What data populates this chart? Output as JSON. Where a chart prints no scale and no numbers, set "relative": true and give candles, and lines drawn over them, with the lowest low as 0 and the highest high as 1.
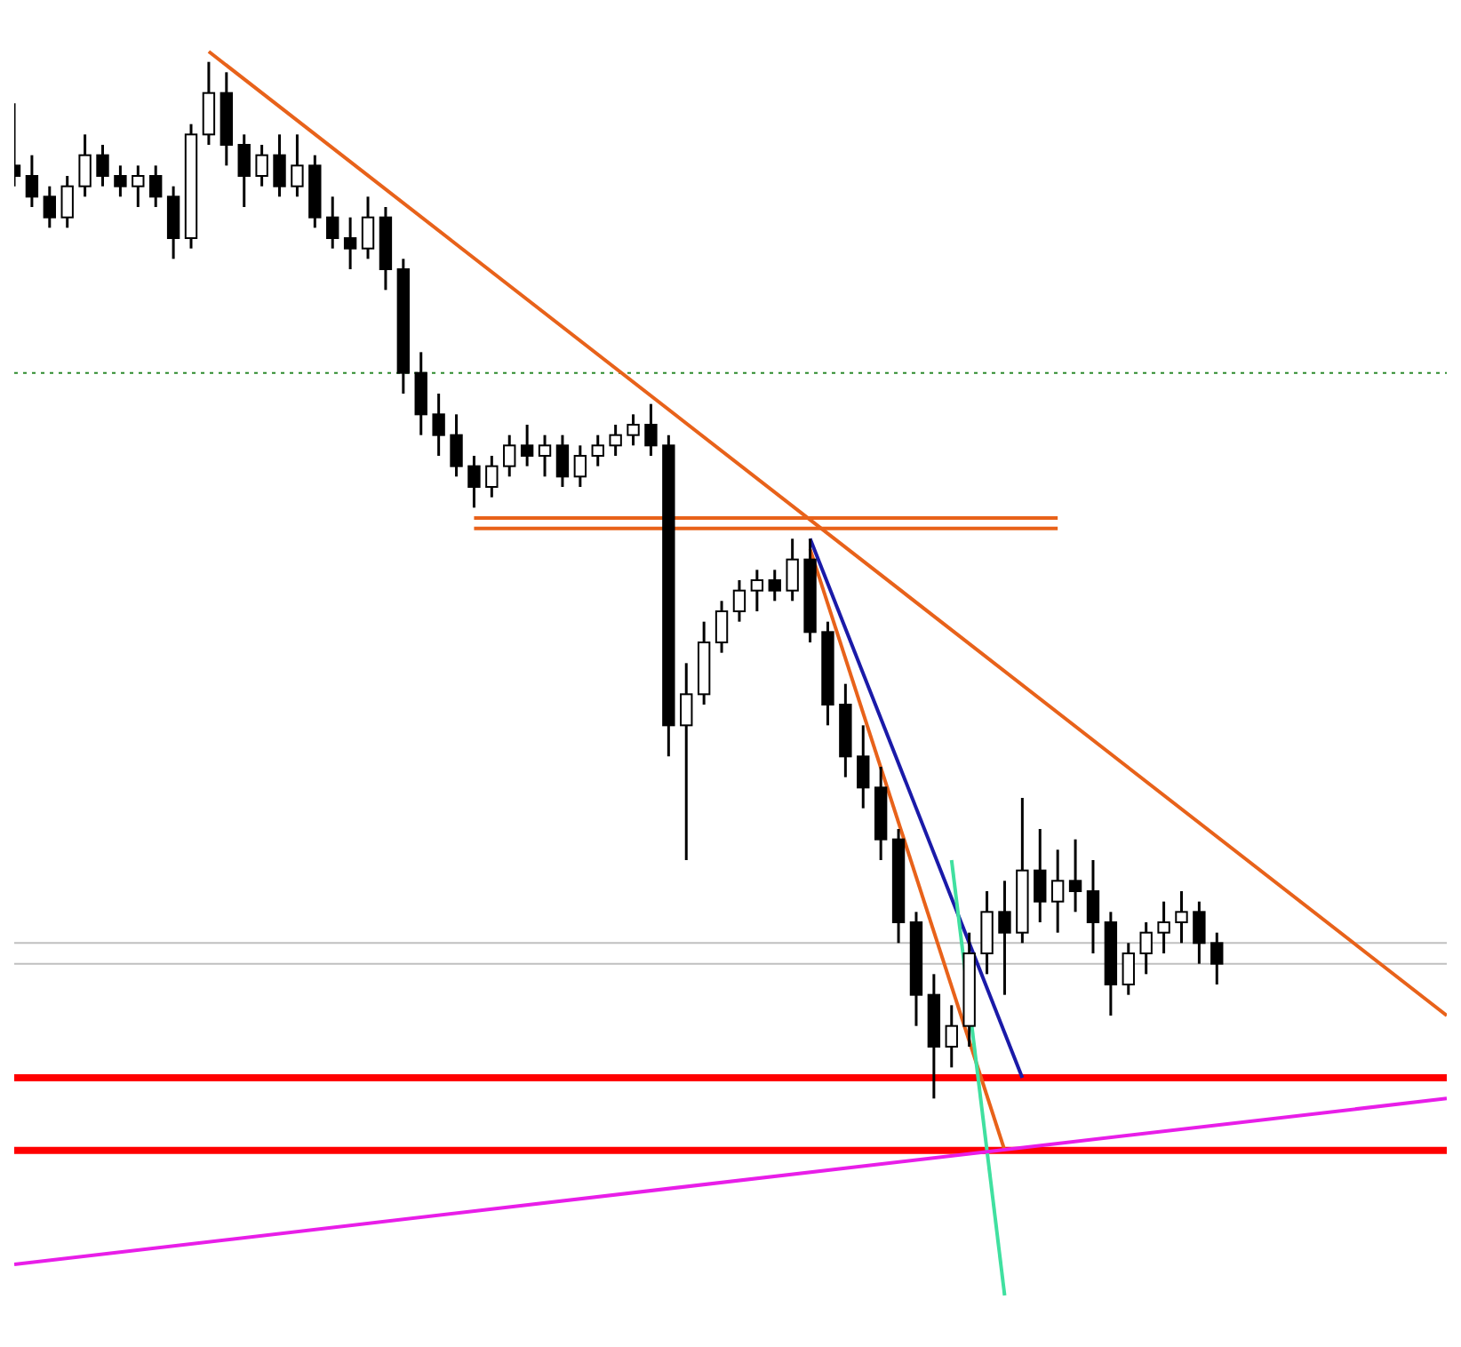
{
  "chart_data": {
    "type": "candlestick",
    "relative": true,
    "color": "#000000",
    "categories": [
      null,
      null,
      null,
      null,
      null,
      null,
      null,
      null,
      null,
      null,
      null,
      null,
      null,
      null,
      null,
      null,
      null,
      null,
      null,
      null,
      null,
      null,
      null,
      null,
      null,
      null,
      null,
      null,
      null,
      null,
      null,
      null,
      null,
      null,
      null,
      null,
      null,
      null,
      null,
      null,
      null,
      null,
      null,
      null,
      null,
      null,
      null,
      null,
      null,
      null,
      null,
      null,
      null,
      null,
      null,
      null,
      null,
      null,
      null,
      null,
      null,
      null,
      null,
      null,
      null,
      null,
      null,
      null,
      null,
      null,
      null,
      null,
      null,
      null,
      null,
      null,
      null,
      null,
      null,
      null,
      null,
      null
    ],
    "ohlc": [
      [
        0.9,
        0.96,
        0.88,
        0.89
      ],
      [
        0.89,
        0.91,
        0.86,
        0.87
      ],
      [
        0.87,
        0.88,
        0.84,
        0.85
      ],
      [
        0.85,
        0.89,
        0.84,
        0.88
      ],
      [
        0.88,
        0.93,
        0.87,
        0.91
      ],
      [
        0.91,
        0.92,
        0.88,
        0.89
      ],
      [
        0.89,
        0.9,
        0.87,
        0.88
      ],
      [
        0.88,
        0.9,
        0.86,
        0.89
      ],
      [
        0.89,
        0.9,
        0.86,
        0.87
      ],
      [
        0.87,
        0.88,
        0.81,
        0.83
      ],
      [
        0.83,
        0.94,
        0.82,
        0.93
      ],
      [
        0.93,
        1.0,
        0.92,
        0.97
      ],
      [
        0.97,
        0.99,
        0.9,
        0.92
      ],
      [
        0.92,
        0.93,
        0.86,
        0.89
      ],
      [
        0.89,
        0.92,
        0.88,
        0.91
      ],
      [
        0.91,
        0.93,
        0.87,
        0.88
      ],
      [
        0.88,
        0.93,
        0.87,
        0.9
      ],
      [
        0.9,
        0.91,
        0.84,
        0.85
      ],
      [
        0.85,
        0.87,
        0.82,
        0.83
      ],
      [
        0.83,
        0.85,
        0.8,
        0.82
      ],
      [
        0.82,
        0.87,
        0.81,
        0.85
      ],
      [
        0.85,
        0.86,
        0.78,
        0.8
      ],
      [
        0.8,
        0.81,
        0.68,
        0.7
      ],
      [
        0.7,
        0.72,
        0.64,
        0.66
      ],
      [
        0.66,
        0.68,
        0.62,
        0.64
      ],
      [
        0.64,
        0.66,
        0.6,
        0.61
      ],
      [
        0.61,
        0.62,
        0.57,
        0.59
      ],
      [
        0.59,
        0.62,
        0.58,
        0.61
      ],
      [
        0.61,
        0.64,
        0.6,
        0.63
      ],
      [
        0.63,
        0.65,
        0.61,
        0.62
      ],
      [
        0.62,
        0.64,
        0.6,
        0.63
      ],
      [
        0.63,
        0.64,
        0.59,
        0.6
      ],
      [
        0.6,
        0.63,
        0.59,
        0.62
      ],
      [
        0.62,
        0.64,
        0.61,
        0.63
      ],
      [
        0.63,
        0.65,
        0.62,
        0.64
      ],
      [
        0.64,
        0.66,
        0.63,
        0.65
      ],
      [
        0.65,
        0.67,
        0.62,
        0.63
      ],
      [
        0.63,
        0.64,
        0.33,
        0.36
      ],
      [
        0.36,
        0.42,
        0.23,
        0.39
      ],
      [
        0.39,
        0.46,
        0.38,
        0.44
      ],
      [
        0.44,
        0.48,
        0.43,
        0.47
      ],
      [
        0.47,
        0.5,
        0.46,
        0.49
      ],
      [
        0.49,
        0.51,
        0.47,
        0.5
      ],
      [
        0.5,
        0.51,
        0.48,
        0.49
      ],
      [
        0.49,
        0.54,
        0.48,
        0.52
      ],
      [
        0.52,
        0.54,
        0.44,
        0.45
      ],
      [
        0.45,
        0.46,
        0.36,
        0.38
      ],
      [
        0.38,
        0.4,
        0.31,
        0.33
      ],
      [
        0.33,
        0.36,
        0.28,
        0.3
      ],
      [
        0.3,
        0.32,
        0.23,
        0.25
      ],
      [
        0.25,
        0.26,
        0.15,
        0.17
      ],
      [
        0.17,
        0.18,
        0.07,
        0.1
      ],
      [
        0.1,
        0.12,
        0.0,
        0.05
      ],
      [
        0.05,
        0.09,
        0.03,
        0.07
      ],
      [
        0.07,
        0.16,
        0.05,
        0.14
      ],
      [
        0.14,
        0.2,
        0.12,
        0.18
      ],
      [
        0.18,
        0.21,
        0.1,
        0.16
      ],
      [
        0.16,
        0.29,
        0.15,
        0.22
      ],
      [
        0.22,
        0.26,
        0.17,
        0.19
      ],
      [
        0.19,
        0.24,
        0.16,
        0.21
      ],
      [
        0.21,
        0.25,
        0.18,
        0.2
      ],
      [
        0.2,
        0.23,
        0.14,
        0.17
      ],
      [
        0.17,
        0.18,
        0.08,
        0.11
      ],
      [
        0.11,
        0.15,
        0.1,
        0.14
      ],
      [
        0.14,
        0.17,
        0.12,
        0.16
      ],
      [
        0.16,
        0.19,
        0.14,
        0.17
      ],
      [
        0.17,
        0.2,
        0.15,
        0.18
      ],
      [
        0.18,
        0.19,
        0.13,
        0.15
      ],
      [
        0.15,
        0.16,
        0.11,
        0.13
      ],
      null,
      null,
      null,
      null,
      null,
      null,
      null,
      null,
      null,
      null,
      null,
      null,
      null
    ],
    "series": [
      {
        "type": "line",
        "color": "#e8621a",
        "values": [
          null,
          null,
          null,
          null,
          null,
          null,
          null,
          null,
          null,
          null,
          null,
          1.01,
          null,
          null,
          null,
          null,
          null,
          null,
          null,
          null,
          null,
          null,
          null,
          null,
          null,
          null,
          null,
          null,
          null,
          null,
          null,
          null,
          null,
          null,
          null,
          null,
          null,
          null,
          null,
          null,
          null,
          null,
          null,
          null,
          null,
          null,
          null,
          null,
          null,
          null,
          null,
          null,
          null,
          null,
          null,
          null,
          null,
          null,
          null,
          null,
          null,
          null,
          null,
          null,
          null,
          null,
          null,
          null,
          null,
          null,
          null,
          null,
          null,
          null,
          null,
          null,
          null,
          null,
          null,
          null,
          null,
          0.08
        ]
      },
      {
        "type": "line",
        "color": "#1a1aa8",
        "values": [
          null,
          null,
          null,
          null,
          null,
          null,
          null,
          null,
          null,
          null,
          null,
          null,
          null,
          null,
          null,
          null,
          null,
          null,
          null,
          null,
          null,
          null,
          null,
          null,
          null,
          null,
          null,
          null,
          null,
          null,
          null,
          null,
          null,
          null,
          null,
          null,
          null,
          null,
          null,
          null,
          null,
          null,
          null,
          null,
          null,
          0.54,
          null,
          null,
          null,
          null,
          null,
          null,
          null,
          null,
          null,
          null,
          null,
          0.02,
          null,
          null,
          null,
          null,
          null,
          null,
          null,
          null,
          null,
          null,
          null,
          null,
          null,
          null,
          null,
          null,
          null,
          null,
          null,
          null,
          null,
          null,
          null,
          null
        ]
      },
      {
        "type": "line",
        "color": "#e8621a",
        "values": [
          null,
          null,
          null,
          null,
          null,
          null,
          null,
          null,
          null,
          null,
          null,
          null,
          null,
          null,
          null,
          null,
          null,
          null,
          null,
          null,
          null,
          null,
          null,
          null,
          null,
          null,
          null,
          null,
          null,
          null,
          null,
          null,
          null,
          null,
          null,
          null,
          null,
          null,
          null,
          null,
          null,
          null,
          null,
          null,
          null,
          0.53,
          null,
          null,
          null,
          null,
          null,
          null,
          null,
          null,
          null,
          null,
          -0.05,
          null,
          null,
          null,
          null,
          null,
          null,
          null,
          null,
          null,
          null,
          null,
          null,
          null,
          null,
          null,
          null,
          null,
          null,
          null,
          null,
          null,
          null,
          null,
          null,
          null
        ]
      },
      {
        "type": "line",
        "color": "#40e0a0",
        "values": [
          null,
          null,
          null,
          null,
          null,
          null,
          null,
          null,
          null,
          null,
          null,
          null,
          null,
          null,
          null,
          null,
          null,
          null,
          null,
          null,
          null,
          null,
          null,
          null,
          null,
          null,
          null,
          null,
          null,
          null,
          null,
          null,
          null,
          null,
          null,
          null,
          null,
          null,
          null,
          null,
          null,
          null,
          null,
          null,
          null,
          null,
          null,
          null,
          null,
          null,
          null,
          null,
          null,
          0.23,
          null,
          null,
          -0.19,
          null,
          null,
          null,
          null,
          null,
          null,
          null,
          null,
          null,
          null,
          null,
          null,
          null,
          null,
          null,
          null,
          null,
          null,
          null,
          null,
          null,
          null,
          null,
          null,
          null
        ]
      },
      {
        "type": "line",
        "color": "#e81ee8",
        "values": [
          -0.16,
          null,
          null,
          null,
          null,
          null,
          null,
          null,
          null,
          null,
          null,
          null,
          null,
          null,
          null,
          null,
          null,
          null,
          null,
          null,
          null,
          null,
          null,
          null,
          null,
          null,
          null,
          null,
          null,
          null,
          null,
          null,
          null,
          null,
          null,
          null,
          null,
          null,
          null,
          null,
          null,
          null,
          null,
          null,
          null,
          null,
          null,
          null,
          null,
          null,
          null,
          null,
          null,
          null,
          null,
          null,
          null,
          null,
          null,
          null,
          null,
          null,
          null,
          null,
          null,
          null,
          null,
          null,
          null,
          null,
          null,
          null,
          null,
          null,
          null,
          null,
          null,
          null,
          null,
          null,
          null,
          0.0
        ]
      },
      {
        "type": "line",
        "color": "#e8621a",
        "values": [
          null,
          null,
          null,
          null,
          null,
          null,
          null,
          null,
          null,
          null,
          null,
          null,
          null,
          null,
          null,
          null,
          null,
          null,
          null,
          null,
          null,
          null,
          null,
          null,
          null,
          null,
          0.56,
          null,
          null,
          null,
          null,
          null,
          null,
          null,
          null,
          null,
          null,
          null,
          null,
          null,
          null,
          null,
          null,
          null,
          null,
          null,
          null,
          null,
          null,
          null,
          null,
          null,
          null,
          null,
          null,
          null,
          null,
          null,
          null,
          0.56,
          null,
          null,
          null,
          null,
          null,
          null,
          null,
          null,
          null,
          null,
          null,
          null,
          null,
          null,
          null,
          null,
          null,
          null,
          null,
          null,
          null,
          null
        ]
      },
      {
        "type": "line",
        "color": "#e8621a",
        "values": [
          null,
          null,
          null,
          null,
          null,
          null,
          null,
          null,
          null,
          null,
          null,
          null,
          null,
          null,
          null,
          null,
          null,
          null,
          null,
          null,
          null,
          null,
          null,
          null,
          null,
          null,
          0.55,
          null,
          null,
          null,
          null,
          null,
          null,
          null,
          null,
          null,
          null,
          null,
          null,
          null,
          null,
          null,
          null,
          null,
          null,
          null,
          null,
          null,
          null,
          null,
          null,
          null,
          null,
          null,
          null,
          null,
          null,
          null,
          null,
          0.55,
          null,
          null,
          null,
          null,
          null,
          null,
          null,
          null,
          null,
          null,
          null,
          null,
          null,
          null,
          null,
          null,
          null,
          null,
          null,
          null,
          null,
          null
        ]
      }
    ],
    "ref_lines": [
      {
        "axis": "y",
        "value": 0.7,
        "color": "#2e8b2e",
        "line_style": "dotted"
      },
      {
        "axis": "y",
        "value": 0.15,
        "color": "#c0c0c0",
        "line_style": "solid"
      },
      {
        "axis": "y",
        "value": 0.13,
        "color": "#c0c0c0",
        "line_style": "solid"
      },
      {
        "axis": "y",
        "value": 0.02,
        "color": "#ff0000",
        "line_style": "solid"
      },
      {
        "axis": "y",
        "value": -0.05,
        "color": "#ff0000",
        "line_style": "solid"
      }
    ]
  }
}
